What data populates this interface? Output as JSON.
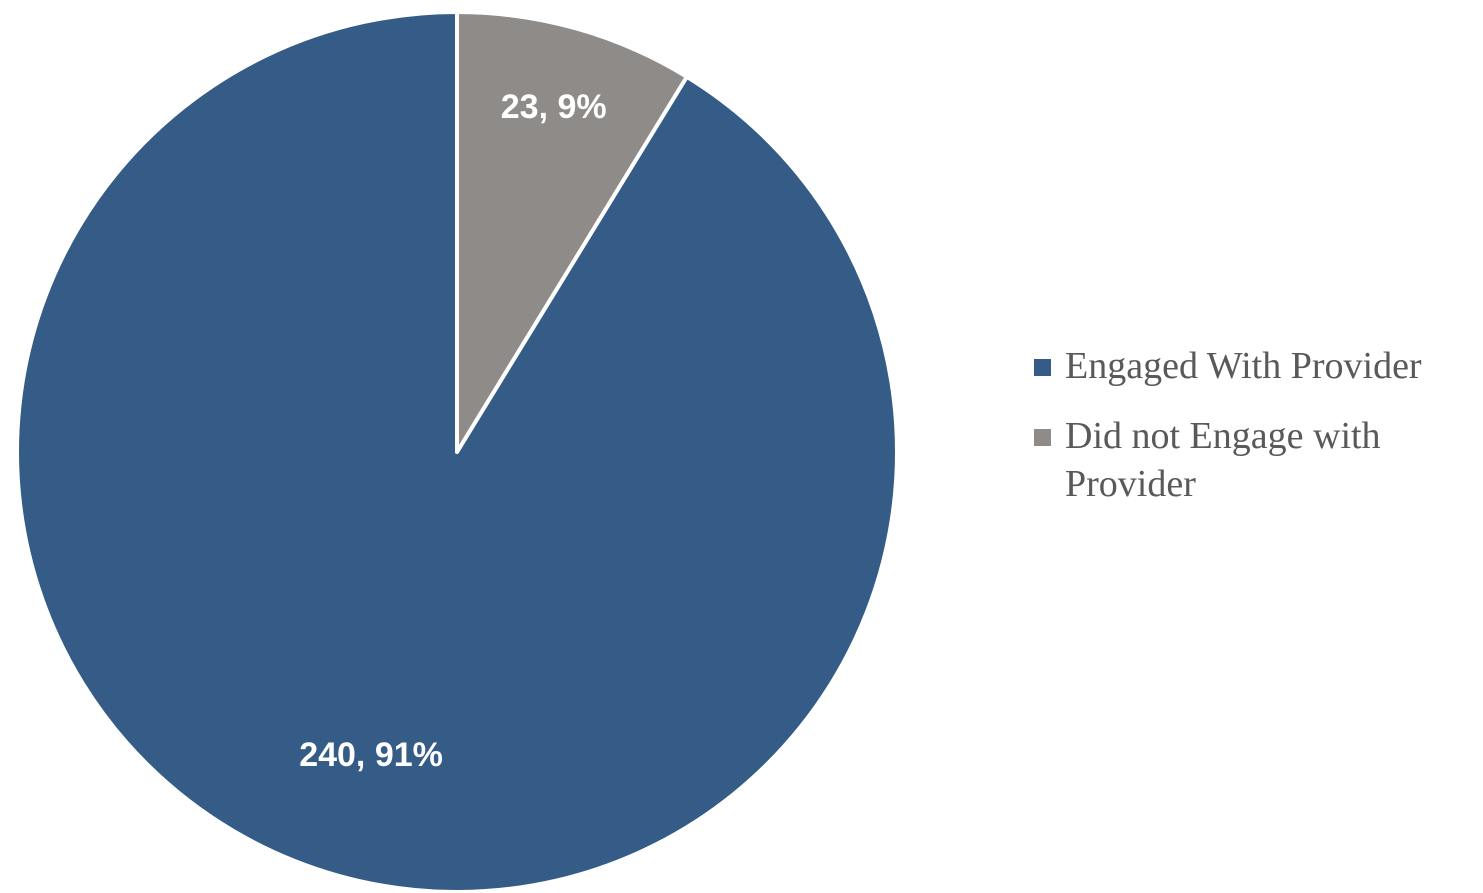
{
  "chart_data": {
    "type": "pie",
    "categories": [
      "Engaged With Provider",
      "Did not Engage with Provider"
    ],
    "values": [
      240,
      23
    ],
    "percentages": [
      91,
      9
    ],
    "data_labels": [
      "240, 91%",
      "23, 9%"
    ],
    "colors": [
      "#345c87",
      "#8e8b89"
    ],
    "start_angle": "12 o'clock",
    "direction": "clockwise",
    "legend_position": "right",
    "title": ""
  }
}
